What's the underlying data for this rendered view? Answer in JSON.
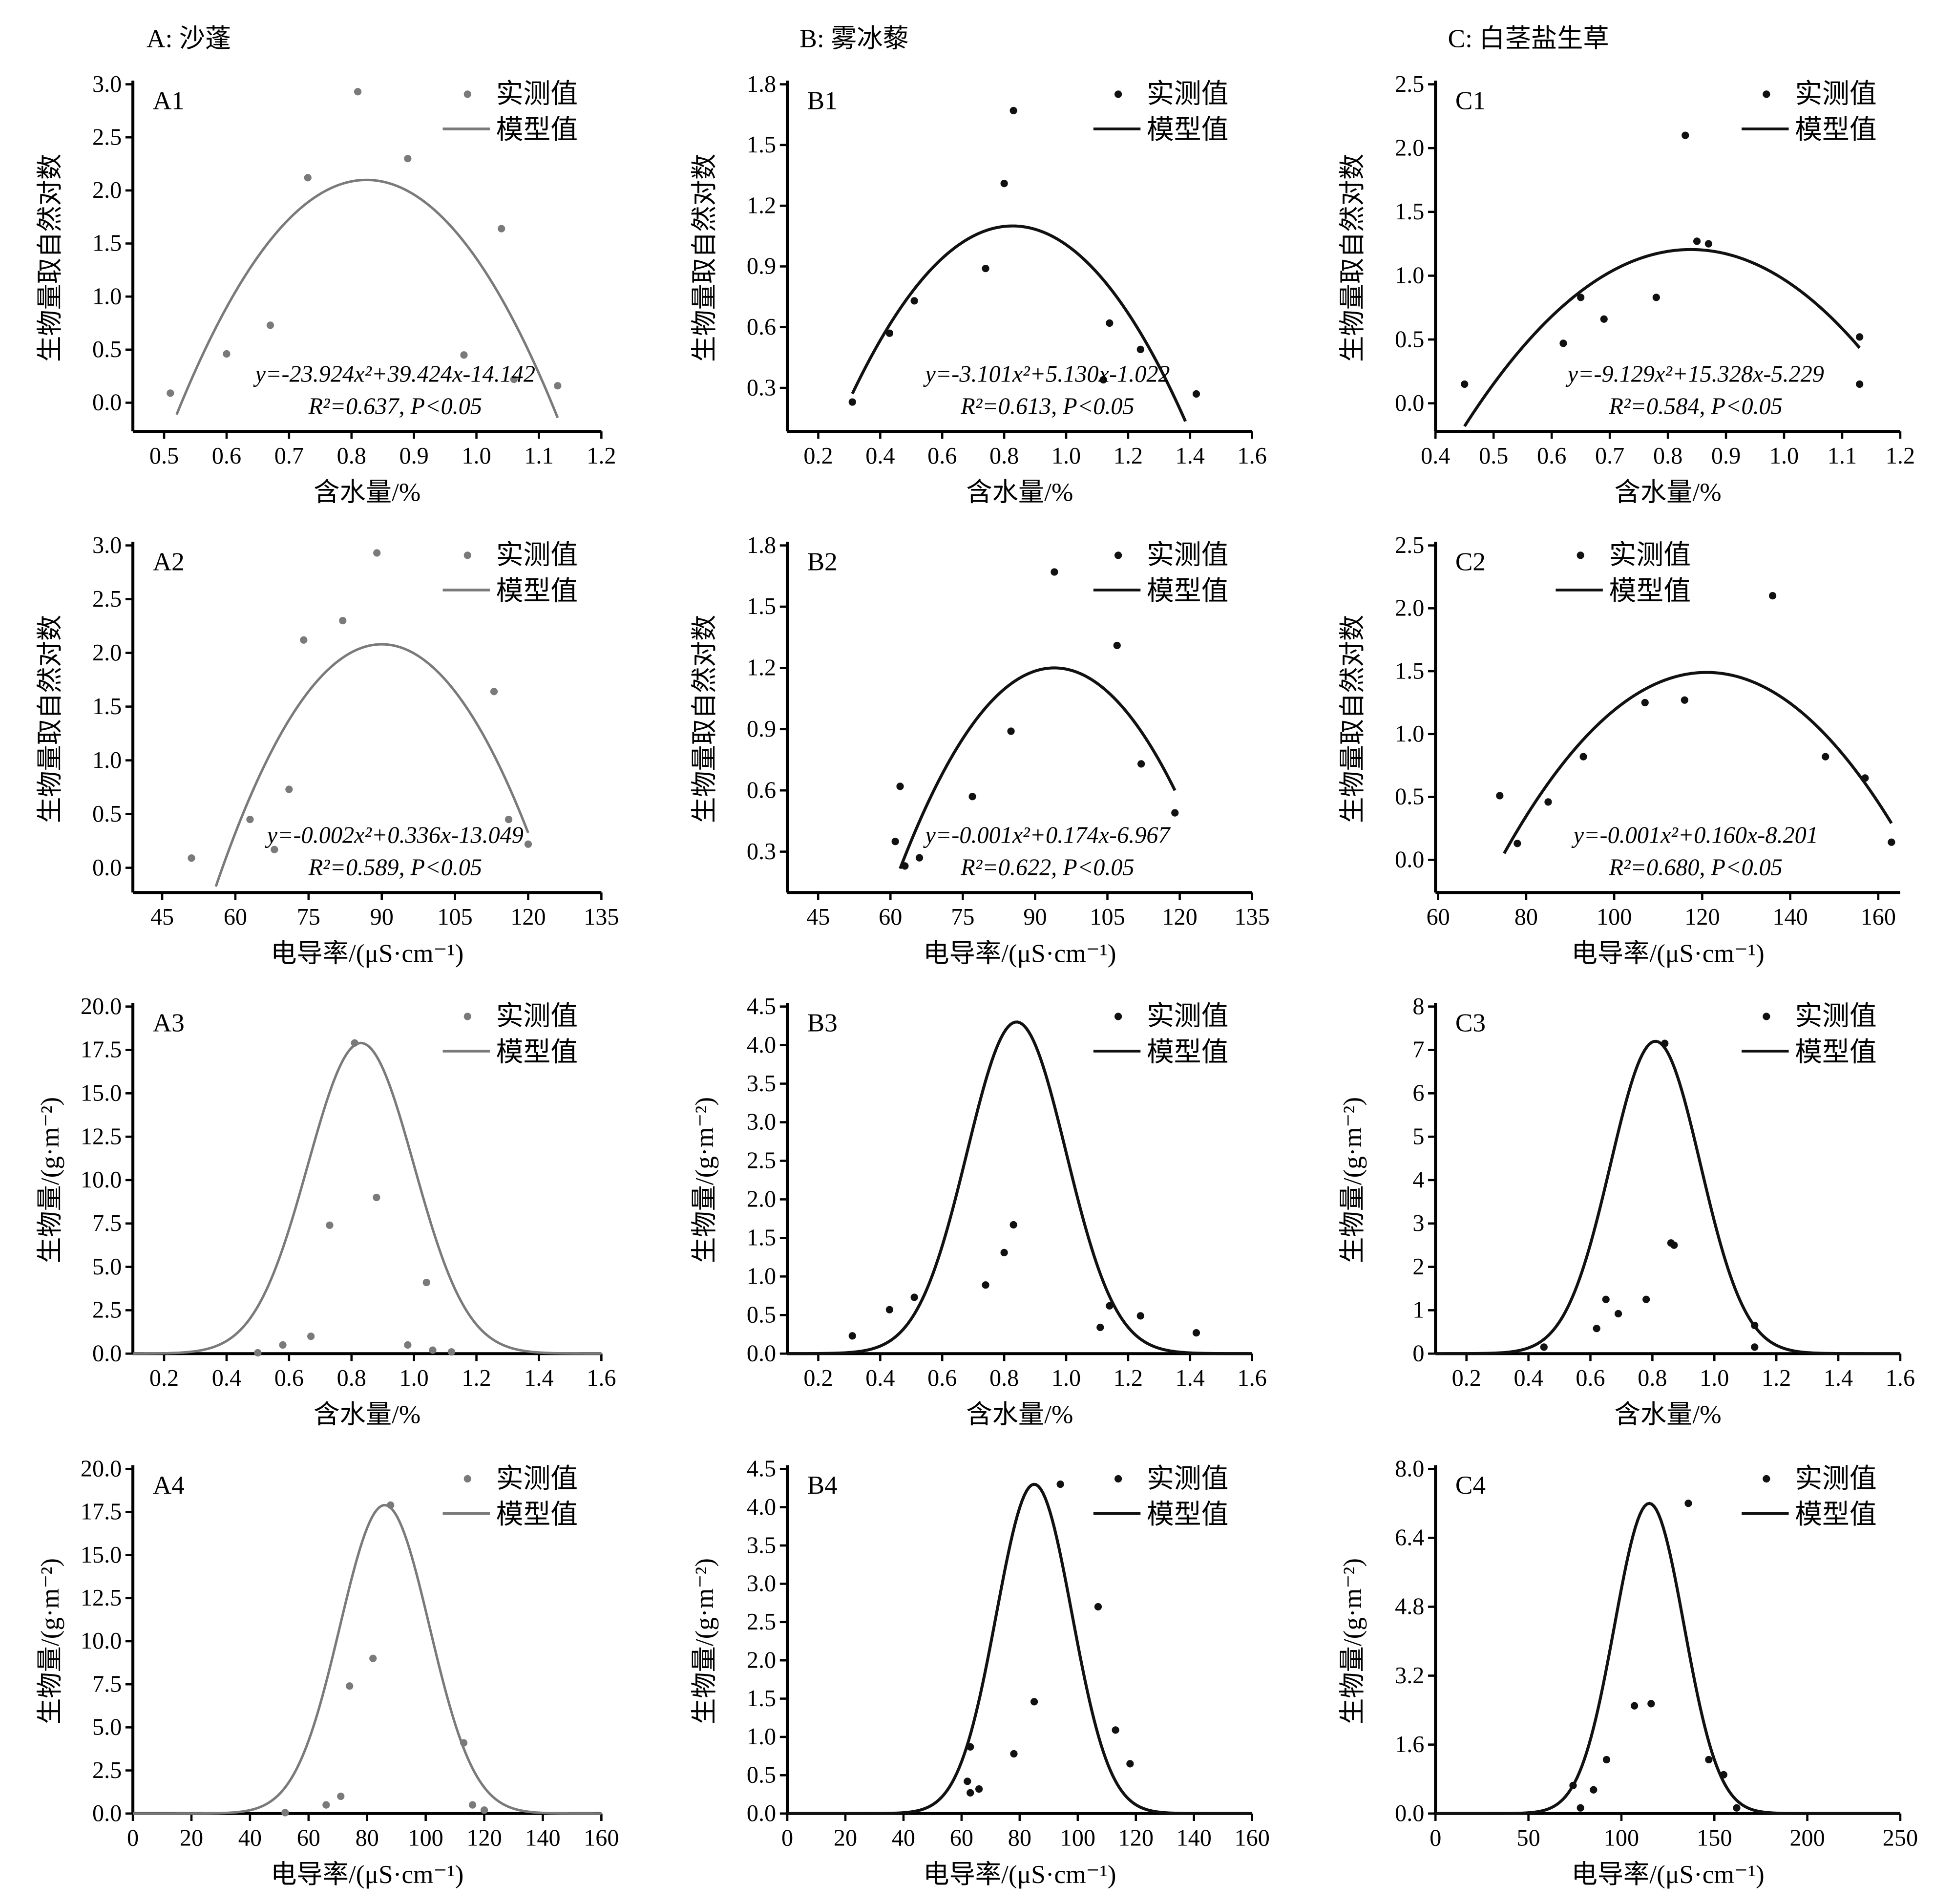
{
  "column_titles": [
    "A: 沙蓬",
    "B: 雾冰藜",
    "C: 白茎盐生草"
  ],
  "legend": {
    "observed": "实测值",
    "model": "模型值"
  },
  "colors": {
    "A": "#7a7a7a",
    "B": "#111111",
    "C": "#111111"
  },
  "chart_data": [
    {
      "id": "A1",
      "type": "scatter+line",
      "xlabel": "含水量/%",
      "ylabel": "生物量取自然对数",
      "xlim": [
        0.45,
        1.2
      ],
      "ylim": [
        -0.27,
        3.0
      ],
      "xticks": [
        "0.5",
        "0.6",
        "0.7",
        "0.8",
        "0.9",
        "1.0",
        "1.1",
        "1.2"
      ],
      "yticks": [
        "0.0",
        "0.5",
        "1.0",
        "1.5",
        "2.0",
        "2.5",
        "3.0"
      ],
      "equation": "y=-23.924x²+39.424x-14.142",
      "stats": "R²=0.637, P<0.05",
      "points": [
        [
          0.51,
          0.09
        ],
        [
          0.6,
          0.46
        ],
        [
          0.67,
          0.73
        ],
        [
          0.73,
          2.12
        ],
        [
          0.81,
          2.93
        ],
        [
          0.89,
          2.3
        ],
        [
          0.98,
          0.45
        ],
        [
          1.04,
          1.64
        ],
        [
          1.06,
          0.22
        ],
        [
          1.13,
          0.16
        ]
      ],
      "model": {
        "form": "quadratic",
        "a": -23.924,
        "h": 0.824,
        "k": 2.099,
        "x_range": [
          0.52,
          1.13
        ]
      },
      "legend_position": "top-right"
    },
    {
      "id": "B1",
      "type": "scatter+line",
      "xlabel": "含水量/%",
      "ylabel": "生物量取自然对数",
      "xlim": [
        0.1,
        1.6
      ],
      "ylim": [
        0.085,
        1.8
      ],
      "xticks": [
        "0.2",
        "0.4",
        "0.6",
        "0.8",
        "1.0",
        "1.2",
        "1.4",
        "1.6"
      ],
      "yticks": [
        "0.3",
        "0.6",
        "0.9",
        "1.2",
        "1.5",
        "1.8"
      ],
      "equation": "y=-3.101x²+5.130x-1.022",
      "stats": "R²=0.613, P<0.05",
      "points": [
        [
          0.31,
          0.23
        ],
        [
          0.43,
          0.57
        ],
        [
          0.51,
          0.73
        ],
        [
          0.74,
          0.89
        ],
        [
          0.8,
          1.31
        ],
        [
          0.83,
          1.67
        ],
        [
          1.12,
          0.34
        ],
        [
          1.14,
          0.62
        ],
        [
          1.24,
          0.49
        ],
        [
          1.42,
          0.27
        ]
      ],
      "model": {
        "form": "quadratic",
        "a": -3.101,
        "h": 0.827,
        "k": 1.1,
        "x_range": [
          0.31,
          1.385
        ]
      },
      "legend_position": "top-right"
    },
    {
      "id": "C1",
      "type": "scatter+line",
      "xlabel": "含水量/%",
      "ylabel": "生物量取自然对数",
      "xlim": [
        0.4,
        1.2
      ],
      "ylim": [
        -0.22,
        2.5
      ],
      "xticks": [
        "0.4",
        "0.5",
        "0.6",
        "0.7",
        "0.8",
        "0.9",
        "1.0",
        "1.1",
        "1.2"
      ],
      "yticks": [
        "0.0",
        "0.5",
        "1.0",
        "1.5",
        "2.0",
        "2.5"
      ],
      "equation": "y=-9.129x²+15.328x-5.229",
      "stats": "R²=0.584, P<0.05",
      "points": [
        [
          0.45,
          0.15
        ],
        [
          0.62,
          0.47
        ],
        [
          0.65,
          0.83
        ],
        [
          0.69,
          0.66
        ],
        [
          0.78,
          0.83
        ],
        [
          0.83,
          2.1
        ],
        [
          0.85,
          1.27
        ],
        [
          0.87,
          1.25
        ],
        [
          1.13,
          0.52
        ],
        [
          1.13,
          0.15
        ]
      ],
      "model": {
        "form": "quadratic",
        "a": -9.129,
        "h": 0.8395,
        "k": 1.205,
        "x_range": [
          0.45,
          1.13
        ]
      },
      "legend_position": "top-right"
    },
    {
      "id": "A2",
      "type": "scatter+line",
      "xlabel": "电导率/(μS·cm⁻¹)",
      "ylabel": "生物量取自然对数",
      "xlim": [
        39,
        135
      ],
      "ylim": [
        -0.23,
        3.0
      ],
      "xticks": [
        "45",
        "60",
        "75",
        "90",
        "105",
        "120",
        "135"
      ],
      "yticks": [
        "0.0",
        "0.5",
        "1.0",
        "1.5",
        "2.0",
        "2.5",
        "3.0"
      ],
      "equation": "y=-0.002x²+0.336x-13.049",
      "stats": "R²=0.589, P<0.05",
      "points": [
        [
          51,
          0.09
        ],
        [
          63,
          0.45
        ],
        [
          68,
          0.17
        ],
        [
          71,
          0.73
        ],
        [
          74,
          2.12
        ],
        [
          82,
          2.3
        ],
        [
          89,
          2.93
        ],
        [
          113,
          1.64
        ],
        [
          116,
          0.45
        ],
        [
          120,
          0.22
        ]
      ],
      "model": {
        "form": "quadratic",
        "a": -0.00195,
        "h": 90,
        "k": 2.08,
        "x_range": [
          56,
          120
        ]
      },
      "legend_position": "top-right"
    },
    {
      "id": "B2",
      "type": "scatter+line",
      "xlabel": "电导率/(μS·cm⁻¹)",
      "ylabel": "生物量取自然对数",
      "xlim": [
        38.6,
        135
      ],
      "ylim": [
        0.1,
        1.8
      ],
      "xticks": [
        "45",
        "60",
        "75",
        "90",
        "105",
        "120",
        "135"
      ],
      "yticks": [
        "0.3",
        "0.6",
        "0.9",
        "1.2",
        "1.5",
        "1.8"
      ],
      "equation": "y=-0.001x²+0.174x-6.967",
      "stats": "R²=0.622, P<0.05",
      "points": [
        [
          61,
          0.35
        ],
        [
          62,
          0.62
        ],
        [
          63,
          0.23
        ],
        [
          66,
          0.27
        ],
        [
          77,
          0.57
        ],
        [
          85,
          0.89
        ],
        [
          94,
          1.67
        ],
        [
          107,
          1.31
        ],
        [
          112,
          0.73
        ],
        [
          119,
          0.49
        ]
      ],
      "model": {
        "form": "quadratic",
        "a": -0.00096,
        "h": 94,
        "k": 1.2,
        "x_range": [
          62,
          119
        ]
      },
      "legend_position": "top-right"
    },
    {
      "id": "C2",
      "type": "scatter+line",
      "xlabel": "电导率/(μS·cm⁻¹)",
      "ylabel": "生物量取自然对数",
      "xlim": [
        59.4,
        165
      ],
      "ylim": [
        -0.26,
        2.5
      ],
      "xticks": [
        "60",
        "80",
        "100",
        "120",
        "140",
        "160"
      ],
      "yticks": [
        "0.0",
        "0.5",
        "1.0",
        "1.5",
        "2.0",
        "2.5"
      ],
      "equation": "y=-0.001x²+0.160x-8.201",
      "stats": "R²=0.680, P<0.05",
      "points": [
        [
          74,
          0.51
        ],
        [
          78,
          0.13
        ],
        [
          85,
          0.46
        ],
        [
          93,
          0.82
        ],
        [
          107,
          1.25
        ],
        [
          116,
          1.27
        ],
        [
          136,
          2.1
        ],
        [
          148,
          0.82
        ],
        [
          157,
          0.65
        ],
        [
          163,
          0.14
        ]
      ],
      "model": {
        "form": "quadratic",
        "a": -0.00068,
        "h": 121,
        "k": 1.49,
        "x_range": [
          75,
          163
        ]
      },
      "legend_position": "top-center"
    },
    {
      "id": "A3",
      "type": "scatter+line",
      "xlabel": "含水量/%",
      "ylabel": "生物量/(g·m⁻²)",
      "xlim": [
        0.1,
        1.6
      ],
      "ylim": [
        0,
        20
      ],
      "xticks": [
        "0.2",
        "0.4",
        "0.6",
        "0.8",
        "1.0",
        "1.2",
        "1.4",
        "1.6"
      ],
      "yticks": [
        "0.0",
        "2.5",
        "5.0",
        "7.5",
        "10.0",
        "12.5",
        "15.0",
        "17.5",
        "20.0"
      ],
      "points": [
        [
          0.5,
          0.05
        ],
        [
          0.58,
          0.5
        ],
        [
          0.67,
          1.0
        ],
        [
          0.73,
          7.4
        ],
        [
          0.81,
          17.9
        ],
        [
          0.88,
          9.0
        ],
        [
          0.98,
          0.5
        ],
        [
          1.04,
          4.1
        ],
        [
          1.06,
          0.2
        ],
        [
          1.12,
          0.1
        ]
      ],
      "model": {
        "form": "gaussian",
        "h": 0.83,
        "k": 17.9,
        "sigma": 0.17,
        "x_range": [
          0.1,
          1.6
        ]
      },
      "legend_position": "top-right"
    },
    {
      "id": "B3",
      "type": "scatter+line",
      "xlabel": "含水量/%",
      "ylabel": "生物量/(g·m⁻²)",
      "xlim": [
        0.1,
        1.6
      ],
      "ylim": [
        0,
        4.5
      ],
      "xticks": [
        "0.2",
        "0.4",
        "0.6",
        "0.8",
        "1.0",
        "1.2",
        "1.4",
        "1.6"
      ],
      "yticks": [
        "0.0",
        "0.5",
        "1.0",
        "1.5",
        "2.0",
        "2.5",
        "3.0",
        "3.5",
        "4.0",
        "4.5"
      ],
      "points": [
        [
          0.31,
          0.23
        ],
        [
          0.43,
          0.57
        ],
        [
          0.51,
          0.73
        ],
        [
          0.74,
          0.89
        ],
        [
          0.8,
          1.31
        ],
        [
          0.83,
          1.67
        ],
        [
          1.11,
          0.34
        ],
        [
          1.14,
          0.62
        ],
        [
          1.24,
          0.49
        ],
        [
          1.42,
          0.27
        ]
      ],
      "model": {
        "form": "gaussian",
        "h": 0.84,
        "k": 4.3,
        "sigma": 0.16,
        "x_range": [
          0.1,
          1.6
        ]
      },
      "legend_position": "top-right"
    },
    {
      "id": "C3",
      "type": "scatter+line",
      "xlabel": "含水量/%",
      "ylabel": "生物量/(g·m⁻²)",
      "xlim": [
        0.1,
        1.6
      ],
      "ylim": [
        0,
        8
      ],
      "xticks": [
        "0.2",
        "0.4",
        "0.6",
        "0.8",
        "1.0",
        "1.2",
        "1.4",
        "1.6"
      ],
      "yticks": [
        "0",
        "1",
        "2",
        "3",
        "4",
        "5",
        "6",
        "7",
        "8"
      ],
      "points": [
        [
          0.45,
          0.15
        ],
        [
          0.62,
          0.58
        ],
        [
          0.65,
          1.25
        ],
        [
          0.69,
          0.92
        ],
        [
          0.78,
          1.25
        ],
        [
          0.84,
          7.15
        ],
        [
          0.86,
          2.55
        ],
        [
          0.87,
          2.5
        ],
        [
          1.13,
          0.65
        ],
        [
          1.13,
          0.15
        ]
      ],
      "model": {
        "form": "gaussian",
        "h": 0.81,
        "k": 7.2,
        "sigma": 0.145,
        "x_range": [
          0.1,
          1.6
        ]
      },
      "legend_position": "top-right"
    },
    {
      "id": "A4",
      "type": "scatter+line",
      "xlabel": "电导率/(μS·cm⁻¹)",
      "ylabel": "生物量/(g·m⁻²)",
      "xlim": [
        0,
        160
      ],
      "ylim": [
        0,
        20
      ],
      "xticks": [
        "0",
        "20",
        "40",
        "60",
        "80",
        "100",
        "120",
        "140",
        "160"
      ],
      "yticks": [
        "0.0",
        "2.5",
        "5.0",
        "7.5",
        "10.0",
        "12.5",
        "15.0",
        "17.5",
        "20.0"
      ],
      "points": [
        [
          52,
          0.05
        ],
        [
          66,
          0.5
        ],
        [
          71,
          1.0
        ],
        [
          74,
          7.4
        ],
        [
          82,
          9.0
        ],
        [
          88,
          17.9
        ],
        [
          113,
          4.1
        ],
        [
          116,
          0.5
        ],
        [
          120,
          0.2
        ]
      ],
      "model": {
        "form": "gaussian",
        "h": 86,
        "k": 17.9,
        "sigma": 15.3,
        "x_range": [
          0,
          160
        ]
      },
      "legend_position": "top-right"
    },
    {
      "id": "B4",
      "type": "scatter+line",
      "xlabel": "电导率/(μS·cm⁻¹)",
      "ylabel": "生物量/(g·m⁻²)",
      "xlim": [
        0,
        160
      ],
      "ylim": [
        0,
        4.5
      ],
      "xticks": [
        "0",
        "20",
        "40",
        "60",
        "80",
        "100",
        "120",
        "140",
        "160"
      ],
      "yticks": [
        "0.0",
        "0.5",
        "1.0",
        "1.5",
        "2.0",
        "2.5",
        "3.0",
        "3.5",
        "4.0",
        "4.5"
      ],
      "points": [
        [
          62,
          0.42
        ],
        [
          63,
          0.87
        ],
        [
          63,
          0.27
        ],
        [
          66,
          0.32
        ],
        [
          78,
          0.78
        ],
        [
          85,
          1.46
        ],
        [
          94,
          4.3
        ],
        [
          107,
          2.7
        ],
        [
          113,
          1.09
        ],
        [
          118,
          0.65
        ]
      ],
      "model": {
        "form": "gaussian",
        "h": 85,
        "k": 4.3,
        "sigma": 13,
        "x_range": [
          0,
          160
        ]
      },
      "legend_position": "top-right"
    },
    {
      "id": "C4",
      "type": "scatter+line",
      "xlabel": "电导率/(μS·cm⁻¹)",
      "ylabel": "生物量/(g·m⁻²)",
      "xlim": [
        0,
        250
      ],
      "ylim": [
        0,
        8
      ],
      "xticks": [
        "0",
        "50",
        "100",
        "150",
        "200",
        "250"
      ],
      "yticks": [
        "0.0",
        "1.6",
        "3.2",
        "4.8",
        "6.4",
        "8.0"
      ],
      "points": [
        [
          74,
          0.65
        ],
        [
          78,
          0.13
        ],
        [
          85,
          0.55
        ],
        [
          92,
          1.25
        ],
        [
          107,
          2.5
        ],
        [
          116,
          2.55
        ],
        [
          136,
          7.2
        ],
        [
          147,
          1.25
        ],
        [
          155,
          0.9
        ],
        [
          162,
          0.13
        ]
      ],
      "model": {
        "form": "gaussian",
        "h": 115,
        "k": 7.2,
        "sigma": 18.7,
        "x_range": [
          0,
          250
        ]
      },
      "legend_position": "top-right"
    }
  ]
}
